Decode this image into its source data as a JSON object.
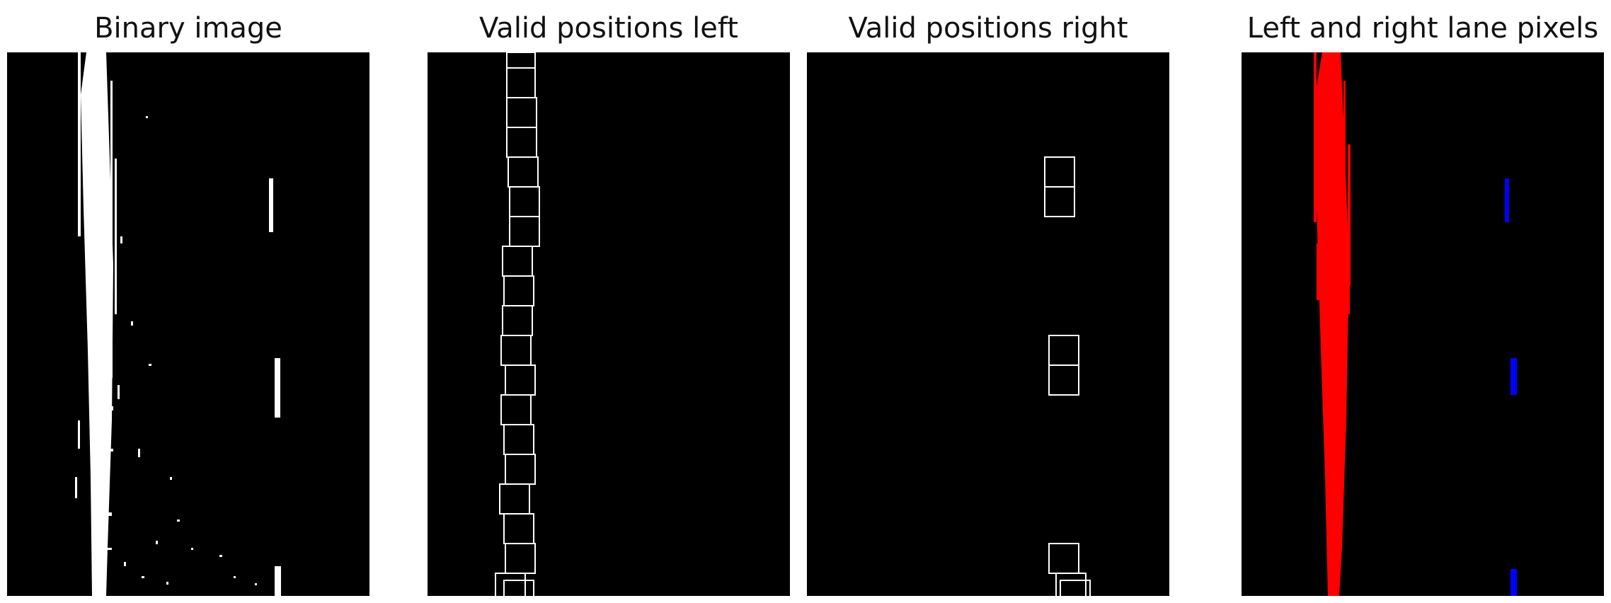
{
  "titles": {
    "binary": "Binary image",
    "left": "Valid positions left",
    "right": "Valid positions right",
    "lane": "Left and right lane pixels"
  },
  "colors": {
    "background": "#000000",
    "binary_pixels": "#ffffff",
    "window_outline": "#ffffff",
    "left_lane_pixels": "#ff0000",
    "right_lane_pixels": "#0000ff"
  }
}
